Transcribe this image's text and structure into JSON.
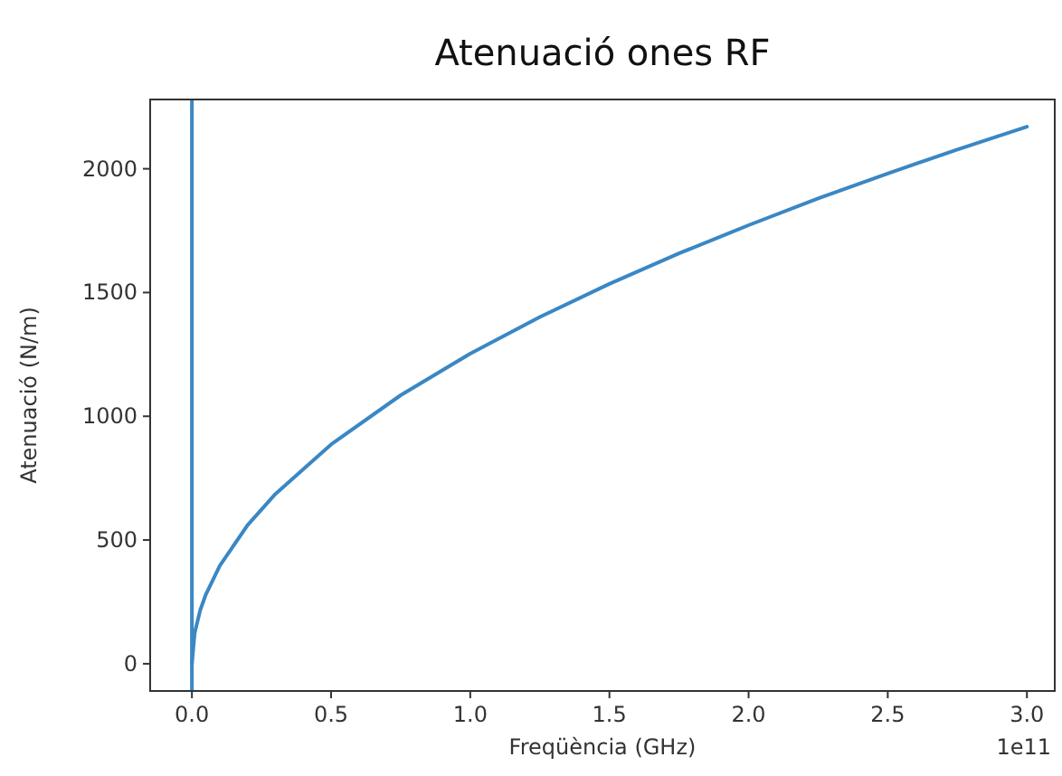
{
  "chart_data": {
    "type": "line",
    "title": "Atenuació ones RF",
    "xlabel": "Freqüència (GHz)",
    "ylabel": "Atenuació (N/m)",
    "annotations": [
      "1e11"
    ],
    "x": [
      0,
      0.01,
      0.03,
      0.05,
      0.1,
      0.2,
      0.3,
      0.5,
      0.75,
      1,
      1.25,
      1.5,
      1.75,
      2,
      2.25,
      2.5,
      2.75,
      3
    ],
    "series": [
      {
        "color": "#3a87c4",
        "values": [
          0,
          125,
          217,
          280,
          396,
          560,
          686,
          886,
          1085,
          1253,
          1401,
          1535,
          1658,
          1772,
          1880,
          1981,
          2078,
          2170
        ]
      }
    ],
    "xlim": [
      -0.15,
      3.1
    ],
    "xticks": [
      {
        "value": 0,
        "label": "0.0"
      },
      0.5,
      {
        "value": 1,
        "label": "1.0"
      },
      1.5,
      {
        "value": 2,
        "label": "2.0"
      },
      2.5,
      {
        "value": 3,
        "label": "3.0"
      }
    ],
    "ylim": [
      -110,
      2280
    ],
    "yticks": [
      0,
      500,
      1000,
      1500,
      2000
    ],
    "ref_lines": [
      {
        "axis": "x",
        "value": 0,
        "color": "#3a87c4"
      }
    ],
    "grid": false,
    "marker": "none",
    "line_style": "solid"
  }
}
